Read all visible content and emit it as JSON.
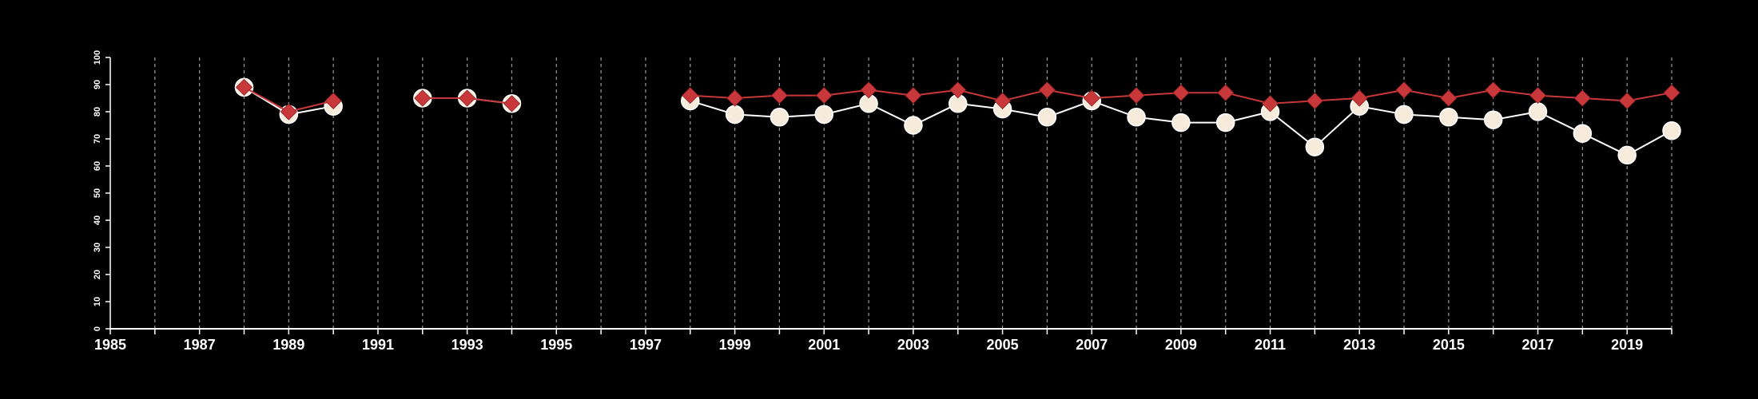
{
  "chart_data": {
    "type": "line",
    "title": "",
    "xlabel": "",
    "ylabel": "",
    "xlim": [
      1985,
      2020
    ],
    "ylim": [
      0,
      100
    ],
    "y_ticks": [
      "0",
      "10",
      "20",
      "30",
      "40",
      "50",
      "60",
      "70",
      "80",
      "90",
      "100"
    ],
    "x_ticks": [
      "1985",
      "1987",
      "1989",
      "1991",
      "1993",
      "1995",
      "1997",
      "1999",
      "2001",
      "2003",
      "2005",
      "2007",
      "2009",
      "2011",
      "2013",
      "2015",
      "2017",
      "2019"
    ],
    "x": [
      1985,
      1986,
      1987,
      1988,
      1989,
      1990,
      1991,
      1992,
      1993,
      1994,
      1995,
      1996,
      1997,
      1998,
      1999,
      2000,
      2001,
      2002,
      2003,
      2004,
      2005,
      2006,
      2007,
      2008,
      2009,
      2010,
      2011,
      2012,
      2013,
      2014,
      2015,
      2016,
      2017,
      2018,
      2019,
      2020
    ],
    "vertical_gridlines": "dashed, every year",
    "colors": {
      "background": "#000000",
      "axis": "#ffffff",
      "grid": "#9a9a9a",
      "series_red": "#c8383a",
      "series_white": "#ffffff",
      "marker_fill_white": "#f7ecdc"
    },
    "series": [
      {
        "marker": "diamond",
        "color": "#c8383a",
        "values": [
          null,
          null,
          null,
          89,
          80,
          84,
          null,
          85,
          85,
          83,
          null,
          null,
          null,
          86,
          85,
          86,
          86,
          88,
          86,
          88,
          84,
          88,
          85,
          86,
          87,
          87,
          83,
          84,
          85,
          88,
          85,
          88,
          86,
          85,
          84,
          87
        ]
      },
      {
        "marker": "circle",
        "color": "#ffffff",
        "values": [
          null,
          null,
          null,
          89,
          79,
          82,
          null,
          85,
          85,
          83,
          null,
          null,
          null,
          84,
          79,
          78,
          79,
          83,
          75,
          83,
          81,
          78,
          84,
          78,
          76,
          76,
          80,
          67,
          82,
          79,
          78,
          77,
          80,
          72,
          64,
          73
        ]
      }
    ]
  }
}
